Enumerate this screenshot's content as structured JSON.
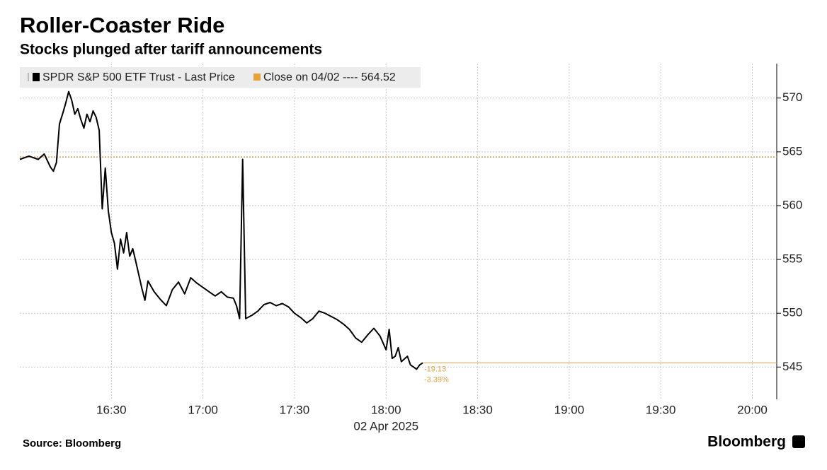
{
  "chart_data": {
    "type": "line",
    "title": "Roller-Coaster Ride",
    "subtitle": "Stocks plunged after tariff announcements",
    "source": "Source: Bloomberg",
    "brand": "Bloomberg",
    "x_label": "02 Apr 2025",
    "x": [
      "16:00",
      "16:03",
      "16:06",
      "16:08",
      "16:10",
      "16:11",
      "16:12",
      "16:13",
      "16:14",
      "16:15",
      "16:16",
      "16:17",
      "16:18",
      "16:19",
      "16:20",
      "16:21",
      "16:22",
      "16:23",
      "16:24",
      "16:25",
      "16:26",
      "16:27",
      "16:28",
      "16:29",
      "16:30",
      "16:31",
      "16:32",
      "16:33",
      "16:34",
      "16:35",
      "16:36",
      "16:37",
      "16:38",
      "16:40",
      "16:41",
      "16:42",
      "16:44",
      "16:46",
      "16:48",
      "16:50",
      "16:52",
      "16:54",
      "16:56",
      "16:58",
      "17:00",
      "17:02",
      "17:04",
      "17:06",
      "17:08",
      "17:10",
      "17:11",
      "17:12",
      "17:13",
      "17:14",
      "17:16",
      "17:18",
      "17:20",
      "17:22",
      "17:24",
      "17:26",
      "17:28",
      "17:30",
      "17:32",
      "17:34",
      "17:36",
      "17:38",
      "17:40",
      "17:42",
      "17:44",
      "17:46",
      "17:48",
      "17:50",
      "17:52",
      "17:54",
      "17:56",
      "17:58",
      "18:00",
      "18:01",
      "18:02",
      "18:03",
      "18:04",
      "18:05",
      "18:07",
      "18:08",
      "18:09",
      "18:10",
      "18:11",
      "18:12"
    ],
    "series": [
      {
        "name": "SPDR S&P 500 ETF Trust - Last Price",
        "color": "#000000",
        "values": [
          564.3,
          564.6,
          564.3,
          564.8,
          563.6,
          563.2,
          564.0,
          567.6,
          568.5,
          569.5,
          570.6,
          569.8,
          568.5,
          569.0,
          568.0,
          567.2,
          568.5,
          567.8,
          568.8,
          568.2,
          567.0,
          559.7,
          563.5,
          559.5,
          557.5,
          556.5,
          554.1,
          556.9,
          555.6,
          557.5,
          555.3,
          556.0,
          554.8,
          552.3,
          551.2,
          553.0,
          552.0,
          551.3,
          550.7,
          552.2,
          552.9,
          551.8,
          553.3,
          552.8,
          552.4,
          552.0,
          551.6,
          552.0,
          551.5,
          551.4,
          550.7,
          549.5,
          564.3,
          549.5,
          549.8,
          550.2,
          550.8,
          551.0,
          550.7,
          550.9,
          550.6,
          550.0,
          549.6,
          549.1,
          549.5,
          550.2,
          550.0,
          549.7,
          549.4,
          549.0,
          548.5,
          547.7,
          547.3,
          548.0,
          548.6,
          547.9,
          546.6,
          548.5,
          545.8,
          546.0,
          546.8,
          545.5,
          546.0,
          545.2,
          545.0,
          544.8,
          545.2,
          545.39
        ]
      }
    ],
    "reference": {
      "name": "Close on 04/02 ---- 564.52",
      "value": 564.52,
      "color": "#e8a23a"
    },
    "annotations": [
      "-19.13",
      "-3.39%"
    ],
    "xlim": [
      "16:00",
      "20:08"
    ],
    "xticks": [
      "16:30",
      "17:00",
      "17:30",
      "18:00",
      "18:30",
      "19:00",
      "19:30",
      "20:00"
    ],
    "ylim": [
      542,
      573.2
    ],
    "yticks": [
      545,
      550,
      555,
      560,
      565,
      570
    ],
    "grid": true
  }
}
